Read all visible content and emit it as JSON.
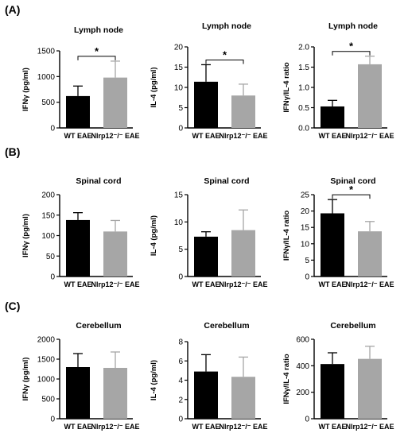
{
  "panels": [
    {
      "label": "(A)"
    },
    {
      "label": "(B)"
    },
    {
      "label": "(C)"
    }
  ],
  "colors": {
    "wt": "#000000",
    "nlrp12": "#a6a6a6",
    "axis": "#000000"
  },
  "chart_data": [
    {
      "type": "bar",
      "panel": "(A)",
      "title": "Lymph node",
      "ylabel": "IFNγ (pg/ml)",
      "xlabel": "",
      "categories": [
        "WT EAE",
        "Nlrp12⁻/⁻ EAE"
      ],
      "values": [
        620,
        980
      ],
      "errors": [
        195,
        320
      ],
      "ylim": [
        0,
        1500
      ],
      "yticks": [
        "0",
        "500",
        "1000",
        "1500"
      ],
      "significance": "*"
    },
    {
      "type": "bar",
      "panel": "(A)",
      "title": "Lymph node",
      "ylabel": "IL-4 (pg/ml)",
      "xlabel": "",
      "categories": [
        "WT EAE",
        "Nlrp12⁻/⁻ EAE"
      ],
      "values": [
        11.4,
        8.0
      ],
      "errors": [
        4.2,
        2.8
      ],
      "ylim": [
        0,
        20
      ],
      "yticks": [
        "0",
        "5",
        "10",
        "15",
        "20"
      ],
      "significance": "*"
    },
    {
      "type": "bar",
      "panel": "(A)",
      "title": "Lymph node",
      "ylabel": "IFNγ/IL-4 ratio",
      "xlabel": "",
      "categories": [
        "WT EAE",
        "Nlrp12⁻/⁻ EAE"
      ],
      "values": [
        0.53,
        1.57
      ],
      "errors": [
        0.15,
        0.2
      ],
      "ylim": [
        0,
        2.0
      ],
      "yticks": [
        "0.0",
        "0.5",
        "1.0",
        "1.5",
        "2.0"
      ],
      "significance": "*"
    },
    {
      "type": "bar",
      "panel": "(B)",
      "title": "Spinal cord",
      "ylabel": "IFNγ (pg/ml)",
      "xlabel": "",
      "categories": [
        "WT EAE",
        "Nlrp12⁻/⁻ EAE"
      ],
      "values": [
        138,
        110
      ],
      "errors": [
        18,
        27
      ],
      "ylim": [
        0,
        200
      ],
      "yticks": [
        "0",
        "50",
        "100",
        "150",
        "200"
      ],
      "significance": ""
    },
    {
      "type": "bar",
      "panel": "(B)",
      "title": "Spinal cord",
      "ylabel": "IL-4 (pg/ml)",
      "xlabel": "",
      "categories": [
        "WT EAE",
        "Nlrp12⁻/⁻ EAE"
      ],
      "values": [
        7.3,
        8.5
      ],
      "errors": [
        0.9,
        3.7
      ],
      "ylim": [
        0,
        15
      ],
      "yticks": [
        "0",
        "5",
        "10",
        "15"
      ],
      "significance": ""
    },
    {
      "type": "bar",
      "panel": "(B)",
      "title": "Spinal cord",
      "ylabel": "IFNγ/IL-4 ratio",
      "xlabel": "",
      "categories": [
        "WT EAE",
        "Nlrp12⁻/⁻ EAE"
      ],
      "values": [
        19.3,
        13.8
      ],
      "errors": [
        4.2,
        3.0
      ],
      "ylim": [
        0,
        25
      ],
      "yticks": [
        "0",
        "5",
        "10",
        "15",
        "20",
        "25"
      ],
      "significance": "*"
    },
    {
      "type": "bar",
      "panel": "(C)",
      "title": "Cerebellum",
      "ylabel": "IFNγ (pg/ml)",
      "xlabel": "",
      "categories": [
        "WT EAE",
        "Nlrp12⁻/⁻ EAE"
      ],
      "values": [
        1300,
        1280
      ],
      "errors": [
        340,
        400
      ],
      "ylim": [
        0,
        2000
      ],
      "yticks": [
        "0",
        "500",
        "1000",
        "1500",
        "2000"
      ],
      "significance": ""
    },
    {
      "type": "bar",
      "panel": "(C)",
      "title": "Cerebellum",
      "ylabel": "IL-4 (pg/ml)",
      "xlabel": "",
      "categories": [
        "WT EAE",
        "Nlrp12⁻/⁻ EAE"
      ],
      "values": [
        4.9,
        4.35
      ],
      "errors": [
        1.75,
        2.05
      ],
      "ylim": [
        0,
        8
      ],
      "yticks": [
        "0",
        "2",
        "4",
        "6",
        "8"
      ],
      "significance": ""
    },
    {
      "type": "bar",
      "panel": "(C)",
      "title": "Cerebellum",
      "ylabel": "IFNγ/IL-4 ratio",
      "xlabel": "",
      "categories": [
        "WT EAE",
        "Nlrp12⁻/⁻ EAE"
      ],
      "values": [
        413,
        452
      ],
      "errors": [
        85,
        95
      ],
      "ylim": [
        0,
        600
      ],
      "yticks": [
        "0",
        "200",
        "400",
        "600"
      ],
      "significance": ""
    }
  ]
}
